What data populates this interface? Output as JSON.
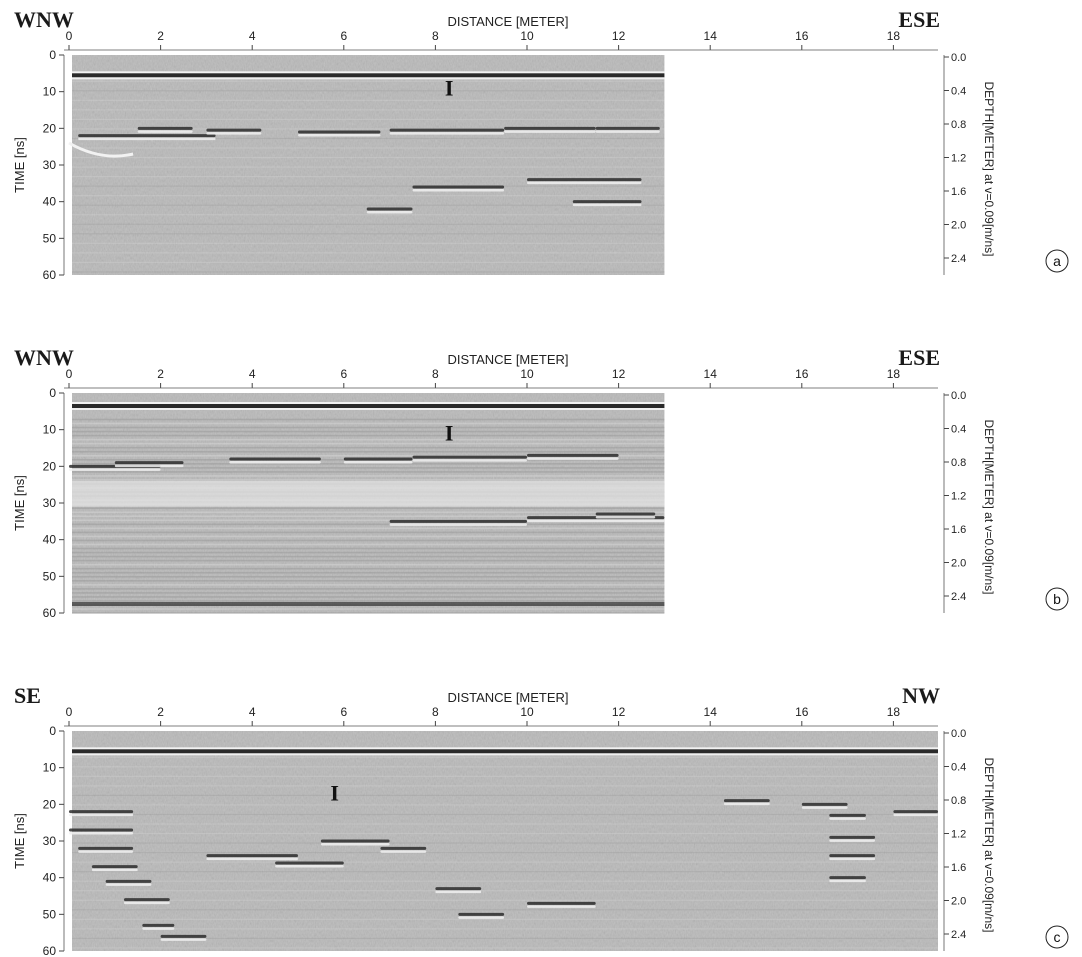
{
  "axis_titles": {
    "distance": "DISTANCE [METER]",
    "time": "TIME [ns]",
    "depth": "DEPTH[METER] at v=0.09[m/ns]"
  },
  "x_ticks": [
    "0",
    "2",
    "4",
    "6",
    "8",
    "10",
    "12",
    "14",
    "16",
    "18"
  ],
  "time_ticks": [
    "0",
    "10",
    "20",
    "30",
    "40",
    "50",
    "60"
  ],
  "depth_ticks": [
    "0.0",
    "0.4",
    "0.8",
    "1.2",
    "1.6",
    "2.0",
    "2.4"
  ],
  "panels": [
    {
      "id": "a",
      "label": "a",
      "left_dir": "WNW",
      "right_dir": "ESE",
      "marker": "I",
      "marker_x_m": 8.3,
      "marker_t_ns": 11,
      "data_end_m": 13.0,
      "reflector_ns": 5
    },
    {
      "id": "b",
      "label": "b",
      "left_dir": "WNW",
      "right_dir": "ESE",
      "marker": "I",
      "marker_x_m": 8.3,
      "marker_t_ns": 13,
      "data_end_m": 13.0,
      "reflector_ns": 3
    },
    {
      "id": "c",
      "label": "c",
      "left_dir": "SE",
      "right_dir": "NW",
      "marker": "I",
      "marker_x_m": 5.8,
      "marker_t_ns": 19,
      "data_end_m": 19.0,
      "reflector_ns": 5
    }
  ],
  "colors": {
    "background": "#ffffff",
    "ink": "#222222",
    "radar_gray": "#b9b9b9"
  }
}
